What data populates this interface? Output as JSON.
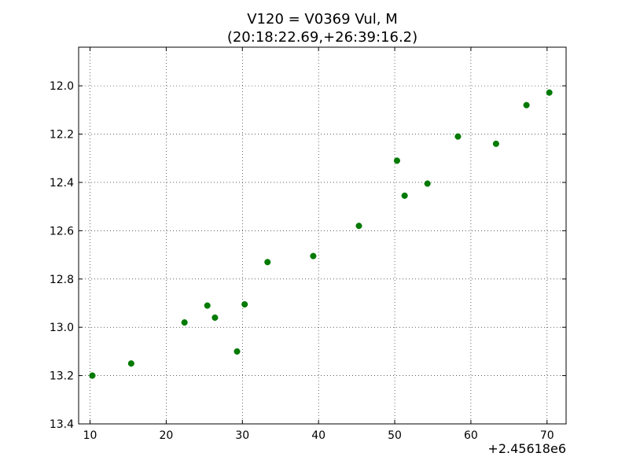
{
  "chart_data": {
    "type": "scatter",
    "title": "V120 = V0369 Vul, M",
    "subtitle": "(20:18:22.69,+26:39:16.2)",
    "xlabel": "",
    "ylabel": "",
    "x_offset_label": "+2.45618e6",
    "xlim": [
      8.5,
      72.5
    ],
    "ylim": [
      13.4,
      11.84
    ],
    "y_inverted": true,
    "grid": true,
    "x_ticks": [
      10,
      20,
      30,
      40,
      50,
      60,
      70
    ],
    "y_ticks": [
      12.0,
      12.2,
      12.4,
      12.6,
      12.8,
      13.0,
      13.2,
      13.4
    ],
    "y_tick_labels": [
      "12.0",
      "12.2",
      "12.4",
      "12.6",
      "12.8",
      "13.0",
      "13.2",
      "13.4"
    ],
    "colors": {
      "marker": "#007a00",
      "grid": "#000000"
    },
    "series": [
      {
        "points": [
          {
            "x": 10.3,
            "y": 13.2
          },
          {
            "x": 15.4,
            "y": 13.15
          },
          {
            "x": 22.4,
            "y": 12.98
          },
          {
            "x": 25.4,
            "y": 12.91
          },
          {
            "x": 26.4,
            "y": 12.96
          },
          {
            "x": 29.3,
            "y": 13.1
          },
          {
            "x": 30.3,
            "y": 12.905
          },
          {
            "x": 33.3,
            "y": 12.73
          },
          {
            "x": 39.3,
            "y": 12.705
          },
          {
            "x": 45.3,
            "y": 12.58
          },
          {
            "x": 50.3,
            "y": 12.31
          },
          {
            "x": 51.3,
            "y": 12.455
          },
          {
            "x": 54.3,
            "y": 12.405
          },
          {
            "x": 58.3,
            "y": 12.21
          },
          {
            "x": 63.3,
            "y": 12.24
          },
          {
            "x": 67.3,
            "y": 12.08
          },
          {
            "x": 70.3,
            "y": 12.028
          }
        ]
      }
    ]
  }
}
